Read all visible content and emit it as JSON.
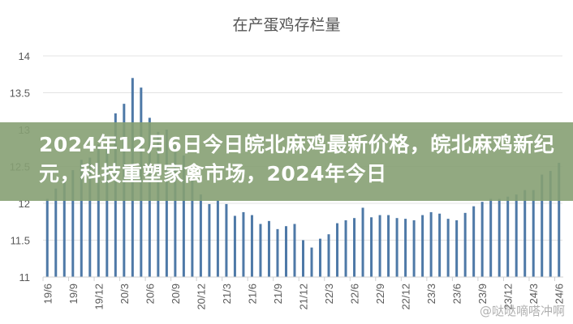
{
  "chart_data": {
    "type": "bar",
    "title": "在产蛋鸡存栏量",
    "xlabel": "",
    "ylabel": "",
    "ylim": [
      11,
      14
    ],
    "yticks": [
      "11",
      "11.5",
      "12",
      "12.5",
      "13",
      "13.5",
      "14"
    ],
    "grid": true,
    "bar_color": "#4e79a7",
    "xtick_labels": [
      "19/6",
      "19/9",
      "19/12",
      "20/3",
      "20/6",
      "20/9",
      "20/12",
      "21/3",
      "21/6",
      "21/9",
      "21/12",
      "22/3",
      "22/6",
      "22/9",
      "22/12",
      "23/3",
      "23/6",
      "23/9",
      "23/12",
      "24/3",
      "24/6"
    ],
    "categories": [
      "19/6",
      "19/7",
      "19/8",
      "19/9",
      "19/10",
      "19/11",
      "19/12",
      "20/1",
      "20/2",
      "20/3",
      "20/4",
      "20/5",
      "20/6",
      "20/7",
      "20/8",
      "20/9",
      "20/10",
      "20/11",
      "20/12",
      "21/1",
      "21/2",
      "21/3",
      "21/4",
      "21/5",
      "21/6",
      "21/7",
      "21/8",
      "21/9",
      "21/10",
      "21/11",
      "21/12",
      "22/1",
      "22/2",
      "22/3",
      "22/4",
      "22/5",
      "22/6",
      "22/7",
      "22/8",
      "22/9",
      "22/10",
      "22/11",
      "22/12",
      "23/1",
      "23/2",
      "23/3",
      "23/4",
      "23/5",
      "23/6",
      "23/7",
      "23/8",
      "23/9",
      "23/10",
      "23/11",
      "23/12",
      "24/1",
      "24/2",
      "24/3",
      "24/4",
      "24/5",
      "24/6"
    ],
    "values": [
      12.06,
      12.2,
      12.34,
      12.45,
      12.59,
      12.62,
      12.8,
      12.78,
      13.22,
      13.35,
      13.7,
      13.57,
      13.16,
      12.97,
      13.0,
      12.78,
      12.65,
      12.4,
      12.12,
      11.99,
      12.04,
      11.99,
      11.83,
      11.88,
      11.84,
      11.72,
      11.76,
      11.65,
      11.69,
      11.72,
      11.5,
      11.4,
      11.52,
      11.58,
      11.73,
      11.77,
      11.8,
      11.94,
      11.81,
      11.84,
      11.84,
      11.8,
      11.79,
      11.77,
      11.84,
      11.88,
      11.86,
      11.79,
      11.77,
      11.87,
      11.96,
      12.02,
      12.06,
      12.06,
      12.09,
      12.12,
      12.18,
      12.18,
      12.39,
      12.44,
      12.55
    ]
  },
  "banner": {
    "headline": "2024年12月6日今日皖北麻鸡最新价格，皖北麻鸡新纪元，科技重塑家禽市场，2024年今日",
    "color": "#86a073"
  },
  "watermark": "@哒哒嘀嗒冲啊"
}
